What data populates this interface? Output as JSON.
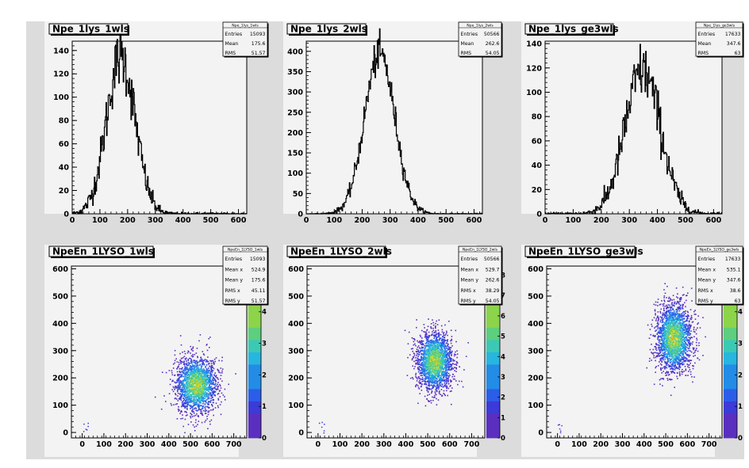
{
  "chart_data": [
    {
      "type": "bar",
      "id": "p1",
      "title": "Npe_1lys_1wls",
      "xlim": [
        0,
        630
      ],
      "ylim": [
        0,
        148
      ],
      "xticks": [
        0,
        100,
        200,
        300,
        400,
        500,
        600
      ],
      "yticks": [
        0,
        20,
        40,
        60,
        80,
        100,
        120,
        140
      ],
      "dist": {
        "peak": 135,
        "mean": 175.6,
        "rms": 51.57
      },
      "stats": {
        "name": "Npe_1lys_1wls",
        "rows": [
          [
            "Entries",
            "15093"
          ],
          [
            "Mean",
            "175.6"
          ],
          [
            "RMS",
            "51.57"
          ]
        ]
      }
    },
    {
      "type": "bar",
      "id": "p2",
      "title": "Npe_1lys_2wls",
      "xlim": [
        0,
        630
      ],
      "ylim": [
        0,
        425
      ],
      "xticks": [
        0,
        100,
        200,
        300,
        400,
        500,
        600
      ],
      "yticks": [
        0,
        50,
        100,
        150,
        200,
        250,
        300,
        350,
        400
      ],
      "dist": {
        "peak": 395,
        "mean": 262.6,
        "rms": 54.05
      },
      "stats": {
        "name": "Npe_1lys_2wls",
        "rows": [
          [
            "Entries",
            "50566"
          ],
          [
            "Mean",
            "262.6"
          ],
          [
            "RMS",
            "54.05"
          ]
        ]
      }
    },
    {
      "type": "bar",
      "id": "p3",
      "title": "Npe_1lys_ge3wls",
      "xlim": [
        0,
        630
      ],
      "ylim": [
        0,
        142
      ],
      "xticks": [
        0,
        100,
        200,
        300,
        400,
        500,
        600
      ],
      "yticks": [
        0,
        20,
        40,
        60,
        80,
        100,
        120,
        140
      ],
      "dist": {
        "peak": 118,
        "mean": 347.6,
        "rms": 63
      },
      "stats": {
        "name": "Npe_1lys_ge3wls",
        "rows": [
          [
            "Entries",
            "17633"
          ],
          [
            "Mean",
            "347.6"
          ],
          [
            "RMS",
            "63"
          ]
        ]
      }
    },
    {
      "type": "heatmap",
      "id": "p4",
      "title": "NpeEn_1LYSO_1wls",
      "xlim": [
        -50,
        760
      ],
      "ylim": [
        -20,
        610
      ],
      "xticks": [
        0,
        100,
        200,
        300,
        400,
        500,
        600,
        700
      ],
      "yticks": [
        0,
        100,
        200,
        300,
        400,
        500,
        600
      ],
      "zticks": [
        1,
        2,
        3,
        4,
        5
      ],
      "cloud": {
        "mean_x": 524.9,
        "mean_y": 175.6,
        "rms_x": 45.11,
        "rms_y": 51.57
      },
      "stats": {
        "name": "NpeEn_1LYSO_1wls",
        "rows": [
          [
            "Entries",
            "15093"
          ],
          [
            "Mean x",
            "524.9"
          ],
          [
            "Mean y",
            "175.6"
          ],
          [
            "RMS x",
            "45.11"
          ],
          [
            "RMS y",
            "51.57"
          ]
        ]
      }
    },
    {
      "type": "heatmap",
      "id": "p5",
      "title": "NpeEn_1LYSO_2wls",
      "xlim": [
        -50,
        760
      ],
      "ylim": [
        -20,
        610
      ],
      "xticks": [
        0,
        100,
        200,
        300,
        400,
        500,
        600,
        700
      ],
      "yticks": [
        0,
        100,
        200,
        300,
        400,
        500,
        600
      ],
      "zticks": [
        1,
        2,
        3,
        4,
        5,
        6,
        7,
        8
      ],
      "cloud": {
        "mean_x": 529.7,
        "mean_y": 262.6,
        "rms_x": 38.29,
        "rms_y": 54.05
      },
      "stats": {
        "name": "NpeEn_1LYSO_2wls",
        "rows": [
          [
            "Entries",
            "50566"
          ],
          [
            "Mean x",
            "529.7"
          ],
          [
            "Mean y",
            "262.6"
          ],
          [
            "RMS x",
            "38.29"
          ],
          [
            "RMS y",
            "54.05"
          ]
        ]
      }
    },
    {
      "type": "heatmap",
      "id": "p6",
      "title": "NpeEn_1LYSO_ge3wls",
      "xlim": [
        -50,
        760
      ],
      "ylim": [
        -20,
        610
      ],
      "xticks": [
        0,
        100,
        200,
        300,
        400,
        500,
        600,
        700
      ],
      "yticks": [
        0,
        100,
        200,
        300,
        400,
        500,
        600
      ],
      "zticks": [
        1,
        2,
        3,
        4,
        5
      ],
      "cloud": {
        "mean_x": 535.1,
        "mean_y": 347.6,
        "rms_x": 38.6,
        "rms_y": 63
      },
      "stats": {
        "name": "NpeEn_1LYSO_ge3wls",
        "rows": [
          [
            "Entries",
            "17633"
          ],
          [
            "Mean x",
            "535.1"
          ],
          [
            "Mean y",
            "347.6"
          ],
          [
            "RMS x",
            "38.6"
          ],
          [
            "RMS y",
            "63"
          ]
        ]
      }
    }
  ]
}
